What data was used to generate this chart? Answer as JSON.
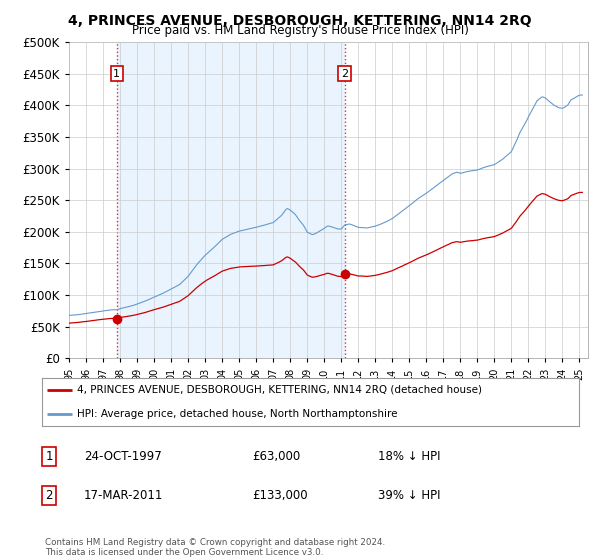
{
  "title": "4, PRINCES AVENUE, DESBOROUGH, KETTERING, NN14 2RQ",
  "subtitle": "Price paid vs. HM Land Registry's House Price Index (HPI)",
  "legend_line1": "4, PRINCES AVENUE, DESBOROUGH, KETTERING, NN14 2RQ (detached house)",
  "legend_line2": "HPI: Average price, detached house, North Northamptonshire",
  "sale1_date": "24-OCT-1997",
  "sale1_price": 63000,
  "sale1_label": "18% ↓ HPI",
  "sale1_x": 1997.81,
  "sale2_date": "17-MAR-2011",
  "sale2_price": 133000,
  "sale2_label": "39% ↓ HPI",
  "sale2_x": 2011.21,
  "red_color": "#cc0000",
  "blue_color": "#6699cc",
  "blue_fill": "#ddeeff",
  "dashed_color": "#cc0000",
  "footnote": "Contains HM Land Registry data © Crown copyright and database right 2024.\nThis data is licensed under the Open Government Licence v3.0.",
  "ylim": [
    0,
    500000
  ],
  "xlim": [
    1995,
    2025.5
  ]
}
